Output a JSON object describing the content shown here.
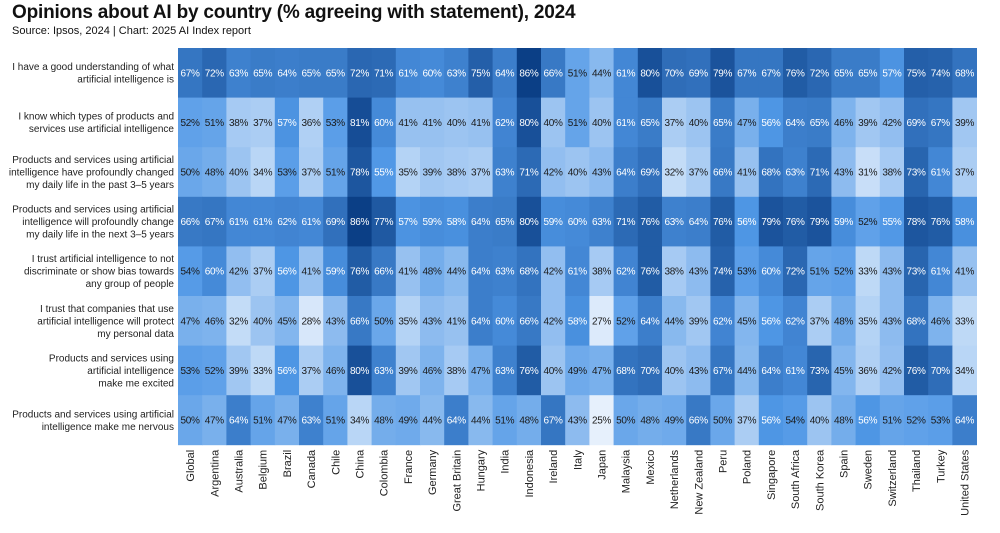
{
  "chart_data": {
    "type": "heatmap",
    "title": "Opinions about AI by country (% agreeing with statement), 2024",
    "subtitle": "Source: Ipsos, 2024 | Chart: 2025 AI Index report",
    "value_suffix": "%",
    "color_range": [
      25,
      86
    ],
    "color_low": "#e6f0fc",
    "color_mid": "#4f97e6",
    "color_high": "#0b3f86",
    "text_dark": "#1a1a1a",
    "text_light": "#ffffff",
    "columns": [
      "Global",
      "Argentina",
      "Australia",
      "Belgium",
      "Brazil",
      "Canada",
      "Chile",
      "China",
      "Colombia",
      "France",
      "Germany",
      "Great Britain",
      "Hungary",
      "India",
      "Indonesia",
      "Ireland",
      "Italy",
      "Japan",
      "Malaysia",
      "Mexico",
      "Netherlands",
      "New Zealand",
      "Peru",
      "Poland",
      "Singapore",
      "South Africa",
      "South Korea",
      "Spain",
      "Sweden",
      "Switzerland",
      "Thailand",
      "Turkey",
      "United States"
    ],
    "rows": [
      {
        "label": [
          "I have a good understanding of what",
          "artificial intelligence is"
        ],
        "values": [
          67,
          72,
          63,
          65,
          64,
          65,
          65,
          72,
          71,
          61,
          60,
          63,
          75,
          64,
          86,
          66,
          51,
          44,
          61,
          80,
          70,
          69,
          79,
          67,
          67,
          76,
          72,
          65,
          65,
          57,
          75,
          74,
          68
        ]
      },
      {
        "label": [
          "I know which types of products and",
          "services use artificial intelligence"
        ],
        "values": [
          52,
          51,
          38,
          37,
          57,
          36,
          53,
          81,
          60,
          41,
          41,
          40,
          41,
          62,
          80,
          40,
          51,
          40,
          61,
          65,
          37,
          40,
          65,
          47,
          56,
          64,
          65,
          46,
          39,
          42,
          69,
          67,
          39
        ]
      },
      {
        "label": [
          "Products and services using artificial",
          "intelligence have profoundly changed",
          "my daily life in the past 3–5 years"
        ],
        "values": [
          50,
          48,
          40,
          34,
          53,
          37,
          51,
          78,
          55,
          35,
          39,
          38,
          37,
          63,
          71,
          42,
          40,
          43,
          64,
          69,
          32,
          37,
          66,
          41,
          68,
          63,
          71,
          43,
          31,
          38,
          73,
          61,
          37
        ]
      },
      {
        "label": [
          "Products and services using artificial",
          "intelligence will profoundly change",
          "my daily life in the next 3–5 years"
        ],
        "values": [
          66,
          67,
          61,
          61,
          62,
          61,
          69,
          86,
          77,
          57,
          59,
          58,
          64,
          65,
          80,
          59,
          60,
          63,
          71,
          76,
          63,
          64,
          76,
          56,
          79,
          76,
          79,
          59,
          52,
          55,
          78,
          76,
          58
        ]
      },
      {
        "label": [
          "I trust artificial intelligence to not",
          "discriminate or show bias towards",
          "any group of people"
        ],
        "values": [
          54,
          60,
          42,
          37,
          56,
          41,
          59,
          76,
          66,
          41,
          48,
          44,
          64,
          63,
          68,
          42,
          61,
          38,
          62,
          76,
          38,
          43,
          74,
          53,
          60,
          72,
          51,
          52,
          33,
          43,
          73,
          61,
          41
        ]
      },
      {
        "label": [
          "I trust that companies that use",
          "artificial intelligence will protect",
          "my personal data"
        ],
        "values": [
          47,
          46,
          32,
          40,
          45,
          28,
          43,
          66,
          50,
          35,
          43,
          41,
          64,
          60,
          66,
          42,
          58,
          27,
          52,
          64,
          44,
          39,
          62,
          45,
          56,
          62,
          37,
          48,
          35,
          43,
          68,
          46,
          33
        ]
      },
      {
        "label": [
          "Products and services using",
          "artificial intelligence",
          "make me excited"
        ],
        "values": [
          53,
          52,
          39,
          33,
          56,
          37,
          46,
          80,
          63,
          39,
          46,
          38,
          47,
          63,
          76,
          40,
          49,
          47,
          68,
          70,
          40,
          43,
          67,
          44,
          64,
          61,
          73,
          45,
          36,
          42,
          76,
          70,
          34
        ]
      },
      {
        "label": [
          "Products and services using artificial",
          "intelligence make me nervous"
        ],
        "values": [
          50,
          47,
          64,
          51,
          47,
          63,
          51,
          34,
          48,
          49,
          44,
          64,
          44,
          51,
          48,
          67,
          43,
          25,
          50,
          48,
          49,
          66,
          50,
          37,
          56,
          54,
          40,
          48,
          56,
          51,
          52,
          53,
          64
        ]
      }
    ]
  }
}
